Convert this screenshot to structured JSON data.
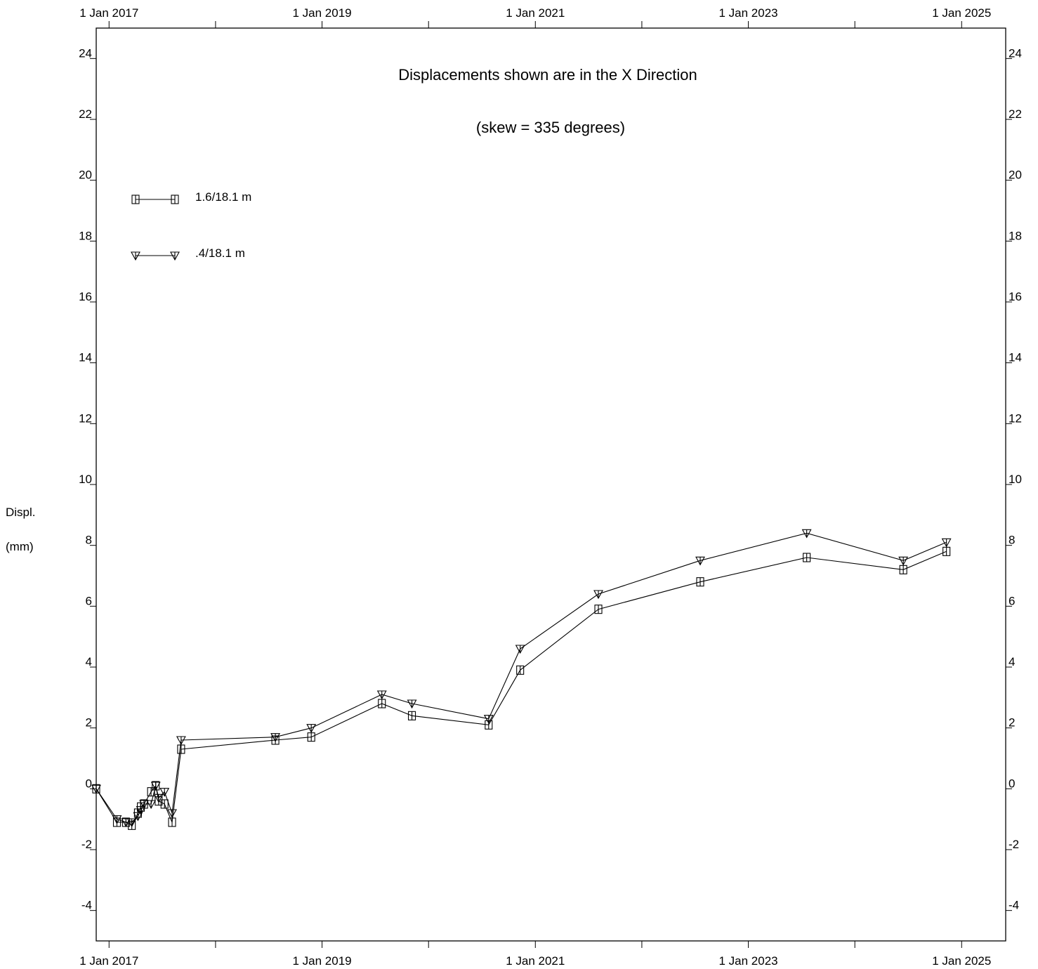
{
  "chart_data": {
    "type": "line",
    "title": "Displacements shown are in the  X Direction",
    "subtitle": "(skew = 335 degrees)",
    "ylabel": [
      "Displ.",
      "(mm)"
    ],
    "xlabel": "",
    "ylim": [
      -5,
      25
    ],
    "yticks": [
      -4,
      -2,
      0,
      2,
      4,
      6,
      8,
      10,
      12,
      14,
      16,
      18,
      20,
      22,
      24
    ],
    "xlim": [
      "2016-11-18",
      "2025-06-01"
    ],
    "xtick_labels": [
      "1 Jan 2017",
      "1 Jan 2019",
      "1 Jan 2021",
      "1 Jan 2023",
      "1 Jan 2025"
    ],
    "xtick_label_dates": [
      "2017-01-01",
      "2019-01-01",
      "2021-01-01",
      "2023-01-01",
      "2025-01-01"
    ],
    "xtick_minor_dates": [
      "2018-01-01",
      "2020-01-01",
      "2022-01-01",
      "2024-01-01"
    ],
    "legend_position": "top-left",
    "grid": false,
    "series": [
      {
        "name": "1.6/18.1 m",
        "marker": "square",
        "points": [
          [
            "2016-11-18",
            0.0
          ],
          [
            "2017-01-28",
            -1.1
          ],
          [
            "2017-02-28",
            -1.1
          ],
          [
            "2017-03-20",
            -1.2
          ],
          [
            "2017-04-10",
            -0.8
          ],
          [
            "2017-04-20",
            -0.6
          ],
          [
            "2017-05-01",
            -0.5
          ],
          [
            "2017-05-25",
            -0.1
          ],
          [
            "2017-06-10",
            0.1
          ],
          [
            "2017-06-20",
            -0.4
          ],
          [
            "2017-07-10",
            -0.5
          ],
          [
            "2017-08-05",
            -1.1
          ],
          [
            "2017-09-05",
            1.3
          ],
          [
            "2018-07-25",
            1.6
          ],
          [
            "2018-11-25",
            1.7
          ],
          [
            "2019-07-25",
            2.8
          ],
          [
            "2019-11-05",
            2.4
          ],
          [
            "2020-07-25",
            2.1
          ],
          [
            "2020-11-10",
            3.9
          ],
          [
            "2021-08-05",
            5.9
          ],
          [
            "2022-07-20",
            6.8
          ],
          [
            "2023-07-20",
            7.6
          ],
          [
            "2024-06-15",
            7.2
          ],
          [
            "2024-11-10",
            7.8
          ]
        ]
      },
      {
        "name": ".4/18.1 m",
        "marker": "triangle-down",
        "points": [
          [
            "2016-11-18",
            0.0
          ],
          [
            "2017-01-28",
            -1.0
          ],
          [
            "2017-02-28",
            -1.1
          ],
          [
            "2017-03-20",
            -1.1
          ],
          [
            "2017-04-10",
            -0.9
          ],
          [
            "2017-04-20",
            -0.7
          ],
          [
            "2017-05-01",
            -0.5
          ],
          [
            "2017-05-25",
            -0.5
          ],
          [
            "2017-06-10",
            0.1
          ],
          [
            "2017-06-20",
            -0.3
          ],
          [
            "2017-07-10",
            -0.1
          ],
          [
            "2017-08-05",
            -0.8
          ],
          [
            "2017-09-05",
            1.6
          ],
          [
            "2018-07-25",
            1.7
          ],
          [
            "2018-11-25",
            2.0
          ],
          [
            "2019-07-25",
            3.1
          ],
          [
            "2019-11-05",
            2.8
          ],
          [
            "2020-07-25",
            2.3
          ],
          [
            "2020-11-10",
            4.6
          ],
          [
            "2021-08-05",
            6.4
          ],
          [
            "2022-07-20",
            7.5
          ],
          [
            "2023-07-20",
            8.4
          ],
          [
            "2024-06-15",
            7.5
          ],
          [
            "2024-11-10",
            8.1
          ]
        ]
      }
    ]
  }
}
